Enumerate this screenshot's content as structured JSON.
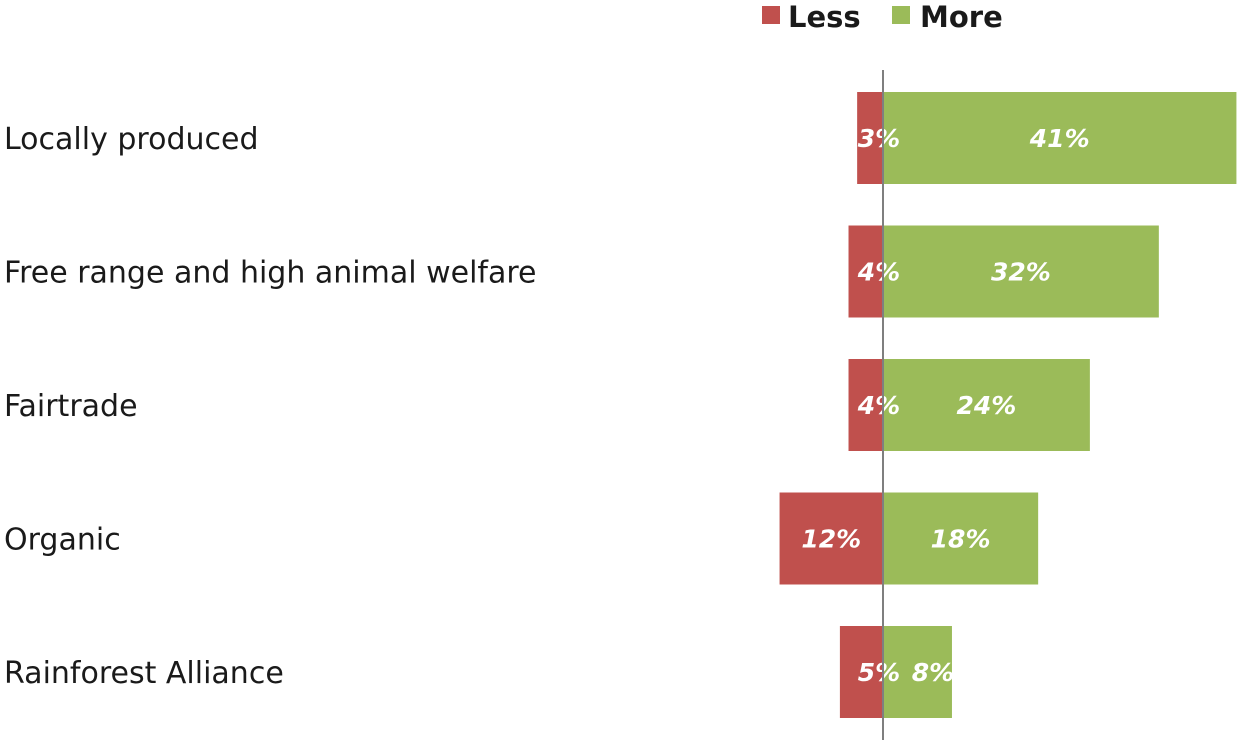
{
  "chart_data": {
    "type": "bar",
    "orientation": "horizontal",
    "stacked": "diverging",
    "categories": [
      "Locally produced",
      "Free range and high animal welfare",
      "Fairtrade",
      "Organic",
      "Rainforest Alliance"
    ],
    "series": [
      {
        "name": "Less",
        "values": [
          3,
          4,
          4,
          12,
          5
        ],
        "labels": [
          "3%",
          "4%",
          "4%",
          "12%",
          "5%"
        ],
        "color": "#c0504d",
        "direction": "negative"
      },
      {
        "name": "More",
        "values": [
          41,
          32,
          24,
          18,
          8
        ],
        "labels": [
          "41%",
          "32%",
          "24%",
          "18%",
          "8%"
        ],
        "color": "#9bbb59",
        "direction": "positive"
      }
    ],
    "unit": "%",
    "legend": {
      "position": "top-right",
      "items": [
        "Less",
        "More"
      ]
    },
    "grid": false,
    "axis_line_color": "#7f7f7f"
  }
}
